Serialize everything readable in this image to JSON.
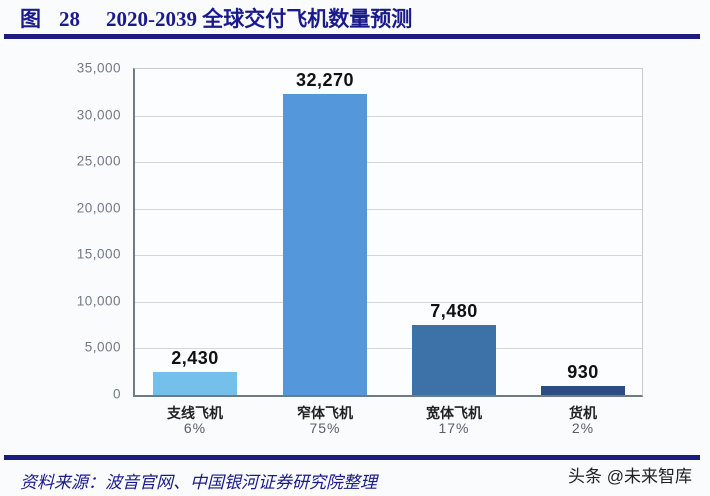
{
  "header": {
    "figure_label": "图",
    "figure_number": "28",
    "title": "2020-2039 全球交付飞机数量预测"
  },
  "footer": {
    "source": "资料来源：波音官网、中国银河证券研究院整理",
    "watermark": "头条 @未来智库"
  },
  "colors": {
    "title": "#1a1a8c",
    "rule": "#1c1c7e",
    "bar_regional": "#74c0ea",
    "bar_narrowbody": "#5497da",
    "bar_widebody": "#3d72a9",
    "bar_freighter": "#2b4e80"
  },
  "chart_data": {
    "type": "bar",
    "title": "2020-2039 全球交付飞机数量预测",
    "xlabel": "",
    "ylabel": "",
    "categories": [
      "支线飞机",
      "窄体飞机",
      "宽体飞机",
      "货机"
    ],
    "values": [
      2430,
      32270,
      7480,
      930
    ],
    "value_labels": [
      "2,430",
      "32,270",
      "7,480",
      "930"
    ],
    "shares": [
      "6%",
      "75%",
      "17%",
      "2%"
    ],
    "ylim": [
      0,
      35000
    ],
    "yticks": [
      0,
      5000,
      10000,
      15000,
      20000,
      25000,
      30000,
      35000
    ],
    "ytick_labels": [
      "0",
      "5,000",
      "10,000",
      "15,000",
      "20,000",
      "25,000",
      "30,000",
      "35,000"
    ],
    "grid": true,
    "legend": "none",
    "bar_colors": [
      "#74c0ea",
      "#5497da",
      "#3d72a9",
      "#2b4e80"
    ]
  }
}
